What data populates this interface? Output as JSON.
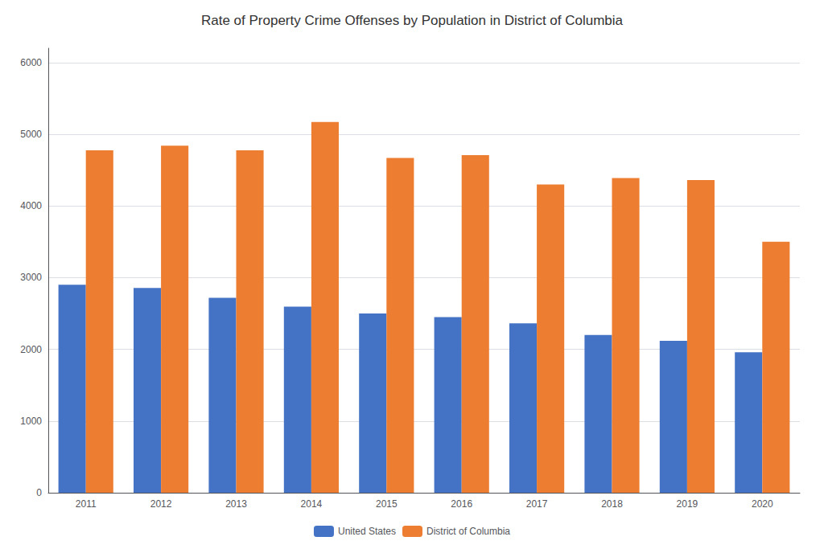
{
  "chart_data": {
    "type": "bar",
    "title": "Rate of Property Crime Offenses by Population in District of Columbia",
    "categories": [
      "2011",
      "2012",
      "2013",
      "2014",
      "2015",
      "2016",
      "2017",
      "2018",
      "2019",
      "2020"
    ],
    "series": [
      {
        "name": "United States",
        "color": "#4472C4",
        "values": [
          2900,
          2855,
          2720,
          2596,
          2500,
          2450,
          2362,
          2200,
          2120,
          1958
        ]
      },
      {
        "name": "District of Columbia",
        "color": "#ED7D31",
        "values": [
          4775,
          4840,
          4775,
          5170,
          4670,
          4710,
          4300,
          4390,
          4360,
          3500
        ]
      }
    ],
    "ylim": [
      0,
      6200
    ],
    "yticks": [
      0,
      1000,
      2000,
      3000,
      4000,
      5000,
      6000
    ],
    "grid": true,
    "legend": "bottom"
  }
}
